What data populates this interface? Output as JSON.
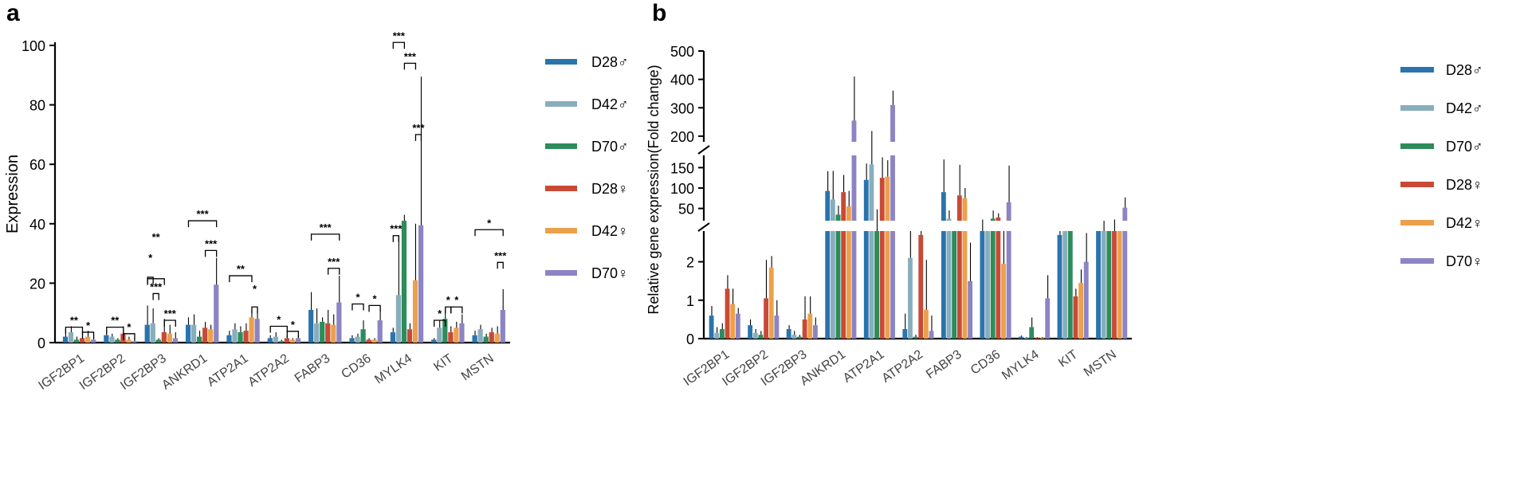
{
  "colors": {
    "D28♂": "#2a74ad",
    "D42♂": "#88aebd",
    "D70♂": "#2c8c5a",
    "D28♀": "#c84a36",
    "D42♀": "#eca04c",
    "D70♀": "#8c84c4"
  },
  "chart_data": [
    {
      "panel": "a",
      "type": "bar",
      "ylabel": "Expression",
      "xlabel": "",
      "ylim": [
        0,
        100
      ],
      "yticks": [
        0,
        20,
        40,
        60,
        80,
        100
      ],
      "categories": [
        "IGF2BP1",
        "IGF2BP2",
        "IGF2BP3",
        "ANKRD1",
        "ATP2A1",
        "ATP2A2",
        "FABP3",
        "CD36",
        "MYLK4",
        "KIT",
        "MSTN"
      ],
      "legend": [
        "D28♂",
        "D42♂",
        "D70♂",
        "D28♀",
        "D42♀",
        "D70♀"
      ],
      "series": [
        {
          "name": "D28♂",
          "values": [
            2.0,
            2.5,
            6.0,
            6.0,
            2.5,
            1.5,
            11.0,
            1.5,
            3.5,
            1.0,
            2.5
          ],
          "errors": [
            2.5,
            1.5,
            6.5,
            2.5,
            1.5,
            1.0,
            6.0,
            1.0,
            1.5,
            0.5,
            1.5
          ]
        },
        {
          "name": "D42♂",
          "values": [
            3.5,
            2.0,
            6.5,
            6.0,
            4.5,
            2.0,
            6.5,
            2.0,
            16.0,
            5.0,
            4.5
          ],
          "errors": [
            2.0,
            1.0,
            5.0,
            3.5,
            2.0,
            1.5,
            5.0,
            1.0,
            20.0,
            2.5,
            1.5
          ]
        },
        {
          "name": "D70♂",
          "values": [
            1.0,
            1.0,
            1.0,
            2.0,
            3.5,
            0.5,
            7.0,
            4.5,
            41.0,
            8.0,
            2.0
          ],
          "errors": [
            1.0,
            0.5,
            0.5,
            2.0,
            2.0,
            0.5,
            1.5,
            3.0,
            2.0,
            3.0,
            1.0
          ]
        },
        {
          "name": "D28♀",
          "values": [
            1.5,
            3.0,
            3.5,
            5.0,
            4.0,
            1.5,
            6.5,
            1.0,
            4.5,
            3.5,
            3.5
          ],
          "errors": [
            2.0,
            2.5,
            4.5,
            2.0,
            2.5,
            1.0,
            4.5,
            0.5,
            2.0,
            2.0,
            1.5
          ]
        },
        {
          "name": "D42♀",
          "values": [
            2.0,
            1.0,
            3.0,
            4.5,
            8.5,
            1.0,
            6.0,
            1.0,
            21.0,
            5.0,
            3.0
          ],
          "errors": [
            2.0,
            1.0,
            3.0,
            1.5,
            2.5,
            0.5,
            3.5,
            0.5,
            19.0,
            2.0,
            2.5
          ]
        },
        {
          "name": "D70♀",
          "values": [
            1.0,
            0.5,
            1.5,
            19.5,
            8.0,
            1.5,
            13.5,
            7.5,
            39.5,
            6.5,
            11.0
          ],
          "errors": [
            1.0,
            1.0,
            2.0,
            9.0,
            3.5,
            1.0,
            9.0,
            3.5,
            50.0,
            3.0,
            7.0
          ]
        }
      ],
      "annotations": [
        {
          "category": "IGF2BP1",
          "label": "**"
        },
        {
          "category": "IGF2BP1",
          "label": "*"
        },
        {
          "category": "IGF2BP2",
          "label": "**"
        },
        {
          "category": "IGF2BP2",
          "label": "*"
        },
        {
          "category": "IGF2BP3",
          "label": "**"
        },
        {
          "category": "IGF2BP3",
          "label": "*"
        },
        {
          "category": "IGF2BP3",
          "label": "***"
        },
        {
          "category": "IGF2BP3",
          "label": "***"
        },
        {
          "category": "ANKRD1",
          "label": "***"
        },
        {
          "category": "ANKRD1",
          "label": "***"
        },
        {
          "category": "ATP2A1",
          "label": "**"
        },
        {
          "category": "ATP2A1",
          "label": "*"
        },
        {
          "category": "ATP2A2",
          "label": "*"
        },
        {
          "category": "ATP2A2",
          "label": "*"
        },
        {
          "category": "FABP3",
          "label": "***"
        },
        {
          "category": "FABP3",
          "label": "***"
        },
        {
          "category": "CD36",
          "label": "*"
        },
        {
          "category": "CD36",
          "label": "*"
        },
        {
          "category": "MYLK4",
          "label": "***"
        },
        {
          "category": "MYLK4",
          "label": "***"
        },
        {
          "category": "MYLK4",
          "label": "***"
        },
        {
          "category": "MYLK4",
          "label": "***"
        },
        {
          "category": "KIT",
          "label": "*"
        },
        {
          "category": "KIT",
          "label": "*"
        },
        {
          "category": "KIT",
          "label": "*"
        },
        {
          "category": "MSTN",
          "label": "*"
        },
        {
          "category": "MSTN",
          "label": "***"
        }
      ]
    },
    {
      "panel": "b",
      "type": "bar",
      "ylabel": "Relative gene expression(Fold change)",
      "xlabel": "",
      "y_axis_breaks": [
        {
          "range": [
            0,
            2.8
          ],
          "ticks": [
            0,
            1,
            2
          ]
        },
        {
          "range": [
            20,
            180
          ],
          "ticks": [
            50,
            100,
            150
          ]
        },
        {
          "range": [
            180,
            500
          ],
          "ticks": [
            200,
            300,
            400,
            500
          ]
        }
      ],
      "categories": [
        "IGF2BP1",
        "IGF2BP2",
        "IGF2BP3",
        "ANKRD1",
        "ATP2A1",
        "ATP2A2",
        "FABP3",
        "CD36",
        "MYLK4",
        "KIT",
        "MSTN"
      ],
      "legend": [
        "D28♂",
        "D42♂",
        "D70♂",
        "D28♀",
        "D42♀",
        "D70♀"
      ],
      "series": [
        {
          "name": "D28♂",
          "values": [
            0.6,
            0.35,
            0.25,
            93,
            120,
            0.25,
            90,
            15,
            0.05,
            2.7,
            8
          ],
          "errors": [
            0.25,
            0.15,
            0.1,
            48,
            40,
            0.4,
            80,
            8,
            0.03,
            2,
            5
          ]
        },
        {
          "name": "D42♂",
          "values": [
            0.15,
            0.15,
            0.1,
            72,
            158,
            2.1,
            25,
            5,
            0.02,
            2.8,
            12
          ],
          "errors": [
            0.15,
            0.1,
            0.1,
            70,
            60,
            0.7,
            20,
            4,
            0.02,
            3,
            8
          ]
        },
        {
          "name": "D70♂",
          "values": [
            0.25,
            0.1,
            0.05,
            35,
            18,
            0.05,
            3,
            25,
            0.3,
            2.8,
            8
          ],
          "errors": [
            0.15,
            0.1,
            0.05,
            22,
            30,
            0.05,
            3,
            20,
            0.25,
            2,
            5
          ]
        },
        {
          "name": "D28♀",
          "values": [
            1.3,
            1.05,
            0.5,
            90,
            125,
            2.7,
            82,
            28,
            0.02,
            1.1,
            15
          ],
          "errors": [
            0.35,
            1.0,
            0.6,
            42,
            50,
            0.1,
            75,
            10,
            0.02,
            0.2,
            8
          ]
        },
        {
          "name": "D42♀",
          "values": [
            0.9,
            1.85,
            0.65,
            55,
            128,
            0.75,
            75,
            1.95,
            0.02,
            1.45,
            10
          ],
          "errors": [
            0.4,
            0.3,
            0.45,
            38,
            40,
            1.3,
            25,
            1.05,
            0.02,
            0.35,
            8
          ]
        },
        {
          "name": "D70♀",
          "values": [
            0.65,
            0.6,
            0.35,
            255,
            310,
            0.2,
            1.5,
            65,
            1.05,
            2.0,
            52
          ],
          "errors": [
            0.15,
            0.4,
            0.2,
            155,
            50,
            0.4,
            1.0,
            90,
            0.6,
            0.75,
            25
          ]
        }
      ]
    }
  ],
  "panel_letters": {
    "a": "a",
    "b": "b"
  }
}
